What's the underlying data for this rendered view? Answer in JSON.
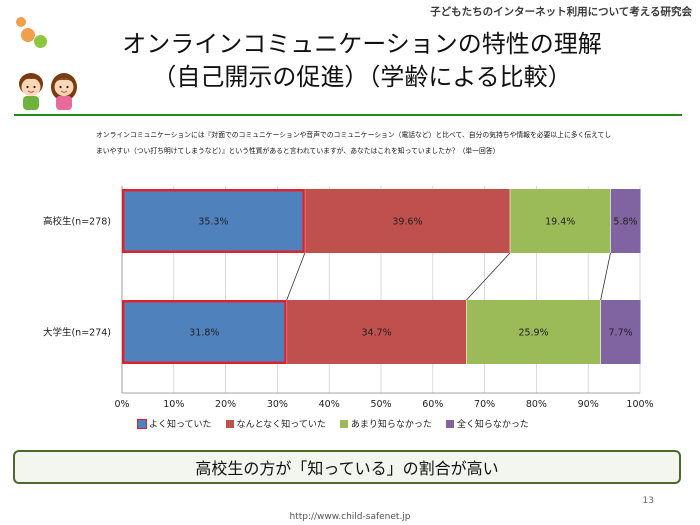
{
  "header": {
    "org": "子どもたちのインターネット利用について考える研究会",
    "title_line1": "オンラインコミュニケーションの特性の理解",
    "title_line2": "（自己開示の促進）（学齢による比較）"
  },
  "question": "オンラインコミュニケーションには『対面でのコミュニケーションや音声でのコミュニケーション（電話など）と比べて、自分の気持ちや情報を必要以上に多く伝えてしまいやすい（つい打ち明けてしまうなど）』という性質があると言われていますが、あなたはこれを知っていましたか？（単一回答）",
  "chart_data": {
    "type": "bar",
    "orientation": "horizontal",
    "stacked": "percent",
    "categories": [
      "高校生(n=278)",
      "大学生(n=274)"
    ],
    "series": [
      {
        "name": "よく知っていた",
        "values": [
          35.3,
          31.8
        ],
        "labels": [
          "35.3%",
          "31.8%"
        ],
        "color": "#4f81bd"
      },
      {
        "name": "なんとなく知っていた",
        "values": [
          39.6,
          34.7
        ],
        "labels": [
          "39.6%",
          "34.7%"
        ],
        "color": "#c0504d"
      },
      {
        "name": "あまり知らなかった",
        "values": [
          19.4,
          25.9
        ],
        "labels": [
          "19.4%",
          "25.9%"
        ],
        "color": "#9bbb59"
      },
      {
        "name": "全く知らなかった",
        "values": [
          5.8,
          7.7
        ],
        "labels": [
          "5.8%",
          "7.7%"
        ],
        "color": "#8064a2"
      }
    ],
    "xlim": [
      0,
      100
    ],
    "xticks": [
      "0%",
      "10%",
      "20%",
      "30%",
      "40%",
      "50%",
      "60%",
      "70%",
      "80%",
      "90%",
      "100%"
    ],
    "highlight_series": 0,
    "highlight_color": "#e0202a",
    "connector_color": "#333333"
  },
  "conclusion": "高校生の方が「知っている」の割合が高い",
  "page_number": "13",
  "footer_url": "http://www.child-safenet.jp",
  "colors": {
    "rule": "#1e8a1e",
    "dot_orange": "#f0a04b",
    "dot_green": "#8dc63f"
  }
}
